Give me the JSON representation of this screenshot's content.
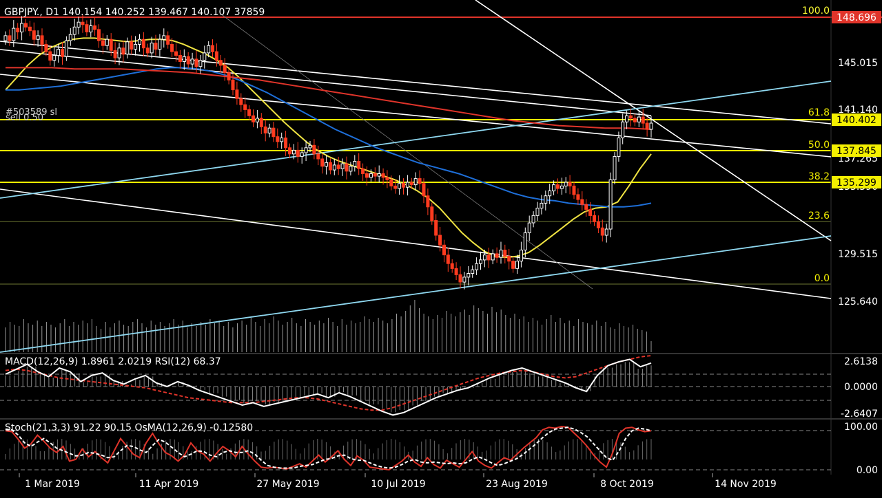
{
  "header": {
    "symbol": "GBPJPY., D1",
    "ohlc": "140.154 140.252 139.467 140.107 37859"
  },
  "trade_label": {
    "line1": "#503589 sl",
    "line2": "sell 0.50"
  },
  "colors": {
    "background": "#000000",
    "candle_up": "#ffffff",
    "candle_down": "#ff3b1f",
    "sma_fast": "#f0e442",
    "sma_mid": "#1e6fd9",
    "sma_slow": "#e0342a",
    "trendline": "#ffffff",
    "channel": "#8fd8f0",
    "fib_major": "#f4f000",
    "fib_minor": "#6f7a34",
    "resistance": "#e0342a",
    "macd_line": "#ffffff",
    "macd_signal": "#e0342a",
    "stoch_main": "#e0342a",
    "stoch_signal": "#ffffff"
  },
  "chart_data": [
    {
      "type": "candlestick",
      "panel": "main",
      "symbol": "GBPJPY.",
      "timeframe": "D1",
      "ylim": [
        123.5,
        149.5
      ],
      "y_ticks": [
        "145.015",
        "141.140",
        "137.265",
        "133.390",
        "129.515",
        "125.640"
      ],
      "x_ticks": [
        "1 Mar 2019",
        "11 Apr 2019",
        "27 May 2019",
        "10 Jul 2019",
        "23 Aug 2019",
        "8 Oct 2019",
        "14 Nov 2019"
      ],
      "close_approx": [
        147.2,
        146.8,
        147.8,
        147.5,
        148.2,
        147.9,
        147.6,
        146.9,
        147.2,
        146.5,
        145.9,
        145.2,
        145.6,
        146.1,
        145.5,
        146.8,
        147.3,
        147.9,
        148.3,
        148.1,
        147.5,
        148.0,
        147.7,
        146.8,
        146.4,
        146.9,
        146.0,
        145.4,
        146.2,
        145.7,
        146.7,
        146.1,
        146.5,
        146.9,
        146.2,
        145.8,
        146.6,
        146.1,
        146.9,
        147.2,
        146.5,
        145.9,
        145.6,
        145.1,
        145.5,
        144.9,
        145.3,
        144.7,
        145.2,
        145.8,
        146.4,
        145.9,
        145.2,
        144.8,
        144.2,
        143.6,
        142.8,
        142.1,
        141.6,
        141.2,
        140.7,
        140.2,
        140.5,
        139.8,
        139.3,
        139.7,
        139.0,
        138.6,
        138.9,
        138.1,
        137.6,
        137.9,
        137.4,
        137.7,
        138.1,
        138.3,
        137.6,
        137.2,
        136.6,
        136.9,
        136.3,
        136.7,
        136.4,
        136.8,
        136.2,
        136.6,
        137.0,
        136.4,
        136.0,
        135.7,
        136.0,
        135.8,
        136.0,
        135.7,
        135.5,
        135.0,
        134.8,
        135.2,
        134.9,
        135.3,
        135.1,
        135.6,
        135.2,
        134.2,
        133.3,
        132.2,
        131.0,
        130.2,
        129.4,
        128.7,
        128.3,
        127.8,
        127.2,
        127.6,
        127.9,
        128.2,
        128.7,
        129.0,
        129.4,
        129.0,
        129.5,
        129.2,
        129.8,
        129.3,
        128.9,
        128.3,
        128.9,
        129.8,
        131.2,
        132.0,
        132.6,
        133.2,
        133.6,
        134.2,
        134.6,
        135.1,
        134.8,
        135.0,
        135.3,
        135.0,
        134.3,
        133.9,
        133.5,
        133.1,
        132.6,
        132.1,
        131.6,
        131.0,
        131.5,
        135.5,
        137.4,
        138.9,
        140.2,
        140.7,
        140.5,
        140.2,
        140.6,
        140.1,
        139.6,
        140.1
      ],
      "moving_averages": [
        {
          "color_key": "sma_fast",
          "values_approx": [
            142.8,
            143.8,
            144.8,
            145.6,
            146.2,
            146.6,
            146.9,
            147.0,
            147.0,
            146.9,
            146.8,
            146.7,
            146.8,
            146.9,
            146.9,
            146.8,
            146.5,
            146.1,
            145.7,
            145.2,
            144.6,
            143.8,
            142.9,
            142.0,
            141.1,
            140.2,
            139.4,
            138.6,
            137.9,
            137.4,
            137.0,
            136.7,
            136.4,
            136.1,
            135.8,
            135.5,
            135.1,
            134.6,
            134.0,
            133.2,
            132.2,
            131.2,
            130.4,
            129.7,
            129.3,
            129.2,
            129.3,
            129.6,
            130.2,
            130.9,
            131.6,
            132.3,
            132.9,
            133.2,
            133.3,
            133.7,
            135.0,
            136.4,
            137.6
          ]
        },
        {
          "color_key": "sma_mid",
          "values_approx": [
            142.8,
            142.8,
            142.9,
            143.0,
            143.1,
            143.3,
            143.5,
            143.7,
            143.9,
            144.1,
            144.3,
            144.5,
            144.6,
            144.6,
            144.5,
            144.3,
            144.0,
            143.6,
            143.1,
            142.6,
            142.0,
            141.4,
            140.8,
            140.2,
            139.6,
            139.1,
            138.6,
            138.1,
            137.7,
            137.3,
            136.9,
            136.6,
            136.3,
            136.0,
            135.6,
            135.2,
            134.8,
            134.4,
            134.1,
            133.9,
            133.8,
            133.6,
            133.5,
            133.4,
            133.3,
            133.3,
            133.4,
            133.6
          ]
        },
        {
          "color_key": "sma_slow",
          "values_approx": [
            144.6,
            144.6,
            144.6,
            144.5,
            144.5,
            144.5,
            144.4,
            144.3,
            144.2,
            144.0,
            143.8,
            143.6,
            143.3,
            143.0,
            142.7,
            142.4,
            142.1,
            141.8,
            141.5,
            141.2,
            140.9,
            140.6,
            140.3,
            140.1,
            139.9,
            139.8,
            139.7,
            139.7,
            139.6
          ]
        }
      ],
      "fibonacci": [
        {
          "level": "100.0",
          "color_key": "fib_major",
          "label_color": "#ffff33",
          "price_label": "148.696",
          "price_bg": "#e0342a"
        },
        {
          "level": "61.8",
          "color_key": "fib_major",
          "price_label": "140.402",
          "price_bg": "#f4f000"
        },
        {
          "level": "50.0",
          "color_key": "fib_major",
          "price_label": "137.845",
          "price_bg": "#f4f000"
        },
        {
          "level": "38.2",
          "color_key": "fib_major",
          "price_label": "135.299",
          "price_bg": "#f4f000"
        },
        {
          "level": "23.6",
          "color_key": "fib_minor"
        },
        {
          "level": "0.0",
          "color_key": "fib_minor"
        }
      ],
      "volume_bars_approx": [
        18,
        22,
        20,
        19,
        24,
        21,
        20,
        23,
        19,
        22,
        20,
        18,
        21,
        24,
        19,
        22,
        20,
        23,
        21,
        24,
        19,
        17,
        22,
        18,
        21,
        23,
        20,
        19,
        22,
        24,
        21,
        18,
        23,
        20,
        22,
        19,
        21,
        24,
        20,
        23,
        18,
        21,
        19,
        22,
        20,
        24,
        21,
        23,
        19,
        22,
        18,
        21,
        23,
        20,
        25,
        22,
        19,
        24,
        21,
        26,
        23,
        20,
        22,
        25,
        21,
        19,
        24,
        22,
        20,
        23,
        21,
        25,
        22,
        19,
        24,
        20,
        23,
        21,
        22,
        26,
        24,
        22,
        25,
        23,
        21,
        24,
        28,
        26,
        30,
        34,
        38,
        32,
        28,
        26,
        24,
        27,
        25,
        30,
        28,
        26,
        29,
        31,
        27,
        34,
        32,
        30,
        28,
        33,
        29,
        31,
        27,
        25,
        28,
        24,
        26,
        22,
        25,
        23,
        20,
        24,
        27,
        22,
        25,
        21,
        23,
        19,
        24,
        22,
        21,
        20,
        23,
        19,
        22,
        18,
        17,
        21,
        19,
        18,
        20,
        17,
        16,
        15,
        8
      ]
    },
    {
      "type": "line",
      "panel": "macd",
      "title": "MACD(12,26,9) 1.8961 2.0219 RSI(12) 68.37",
      "y_ticks": [
        "2.6138",
        "0.0000",
        "-2.6407"
      ],
      "series": [
        {
          "color_key": "macd_line",
          "values_approx": [
            1.0,
            1.4,
            1.8,
            1.2,
            0.8,
            1.5,
            1.2,
            0.4,
            0.9,
            1.1,
            0.5,
            0.2,
            0.6,
            0.9,
            0.3,
            0.0,
            0.4,
            0.1,
            -0.3,
            -0.6,
            -0.9,
            -1.2,
            -1.5,
            -1.3,
            -1.6,
            -1.4,
            -1.2,
            -1.0,
            -0.8,
            -0.6,
            -0.9,
            -0.5,
            -0.8,
            -1.2,
            -1.6,
            -2.0,
            -2.3,
            -2.1,
            -1.7,
            -1.3,
            -0.9,
            -0.6,
            -0.3,
            -0.1,
            0.3,
            0.7,
            1.0,
            1.3,
            1.5,
            1.2,
            0.9,
            0.6,
            0.3,
            -0.1,
            -0.4,
            0.9,
            1.7,
            2.0,
            2.2,
            1.6,
            1.9
          ]
        },
        {
          "color_key": "macd_signal",
          "values_approx": [
            1.3,
            1.4,
            1.3,
            1.1,
            0.9,
            0.7,
            0.6,
            0.5,
            0.4,
            0.3,
            0.2,
            0.1,
            0.0,
            -0.1,
            -0.3,
            -0.5,
            -0.7,
            -0.9,
            -1.0,
            -1.1,
            -1.2,
            -1.3,
            -1.3,
            -1.3,
            -1.2,
            -1.1,
            -1.0,
            -0.9,
            -0.9,
            -1.0,
            -1.2,
            -1.4,
            -1.6,
            -1.8,
            -1.9,
            -1.9,
            -1.7,
            -1.4,
            -1.1,
            -0.8,
            -0.5,
            -0.2,
            0.1,
            0.4,
            0.7,
            0.9,
            1.1,
            1.2,
            1.3,
            1.2,
            1.0,
            0.8,
            0.7,
            0.8,
            1.1,
            1.4,
            1.7,
            2.0,
            2.2,
            2.4,
            2.5
          ]
        }
      ]
    },
    {
      "type": "line",
      "panel": "stochastic",
      "title": "Stoch(21,3,3) 91.22 90.15 OsMA(12,26,9) -0.12580",
      "y_ticks": [
        "100.00",
        "0.00"
      ],
      "series": [
        {
          "color_key": "stoch_main",
          "values_approx": [
            90,
            88,
            70,
            50,
            60,
            80,
            66,
            50,
            40,
            54,
            20,
            24,
            48,
            30,
            42,
            28,
            16,
            44,
            72,
            54,
            36,
            28,
            62,
            84,
            60,
            40,
            32,
            20,
            34,
            62,
            44,
            36,
            20,
            38,
            54,
            44,
            30,
            54,
            36,
            20,
            6,
            4,
            6,
            4,
            2,
            8,
            14,
            6,
            20,
            34,
            18,
            30,
            44,
            24,
            10,
            32,
            22,
            6,
            4,
            2,
            0,
            10,
            20,
            34,
            18,
            8,
            28,
            12,
            4,
            22,
            14,
            6,
            24,
            42,
            20,
            10,
            4,
            16,
            28,
            22,
            36,
            50,
            62,
            74,
            92,
            98,
            96,
            100,
            98,
            84,
            70,
            54,
            34,
            18,
            6,
            40,
            84,
            96,
            98,
            92,
            88,
            90
          ]
        },
        {
          "color_key": "stoch_signal",
          "values_approx": [
            94,
            92,
            80,
            62,
            54,
            64,
            72,
            62,
            50,
            44,
            38,
            32,
            34,
            40,
            38,
            34,
            28,
            30,
            44,
            56,
            54,
            46,
            40,
            56,
            70,
            64,
            52,
            40,
            30,
            36,
            44,
            42,
            34,
            30,
            40,
            44,
            40,
            40,
            44,
            36,
            22,
            10,
            6,
            4,
            4,
            4,
            8,
            10,
            12,
            18,
            24,
            26,
            32,
            34,
            26,
            22,
            22,
            16,
            10,
            6,
            4,
            6,
            12,
            20,
            24,
            18,
            16,
            18,
            16,
            14,
            16,
            14,
            16,
            24,
            30,
            24,
            16,
            10,
            14,
            20,
            26,
            36,
            48,
            60,
            74,
            86,
            94,
            96,
            98,
            94,
            86,
            76,
            60,
            44,
            28,
            22,
            44,
            72,
            90,
            96,
            94,
            90
          ]
        }
      ]
    }
  ]
}
